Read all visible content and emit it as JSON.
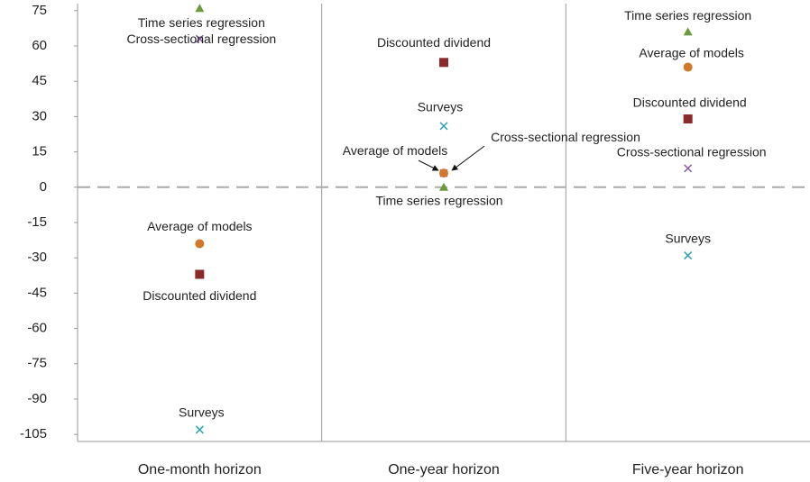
{
  "chart_data": {
    "type": "scatter",
    "categories": [
      "One-month horizon",
      "One-year horizon",
      "Five-year horizon"
    ],
    "series": [
      {
        "name": "Time series regression",
        "color": "#6a9a3a",
        "marker": "triangle",
        "values": [
          76,
          0,
          66
        ]
      },
      {
        "name": "Cross-sectional regression",
        "color": "#8a5aa8",
        "marker": "cross",
        "values": [
          63,
          6,
          8
        ]
      },
      {
        "name": "Discounted dividend",
        "color": "#8b2a2a",
        "marker": "square",
        "values": [
          -37,
          53,
          29
        ]
      },
      {
        "name": "Average of models",
        "color": "#d2782a",
        "marker": "circle",
        "values": [
          -24,
          6,
          51
        ]
      },
      {
        "name": "Surveys",
        "color": "#2aa0b0",
        "marker": "cross",
        "values": [
          -103,
          26,
          -29
        ]
      }
    ],
    "ylim": [
      -108,
      78
    ],
    "yticks": [
      75,
      60,
      45,
      30,
      15,
      0,
      -15,
      -30,
      -45,
      -60,
      -75,
      -90,
      -105
    ],
    "reference_line": {
      "value": 0,
      "style": "dashed"
    }
  }
}
